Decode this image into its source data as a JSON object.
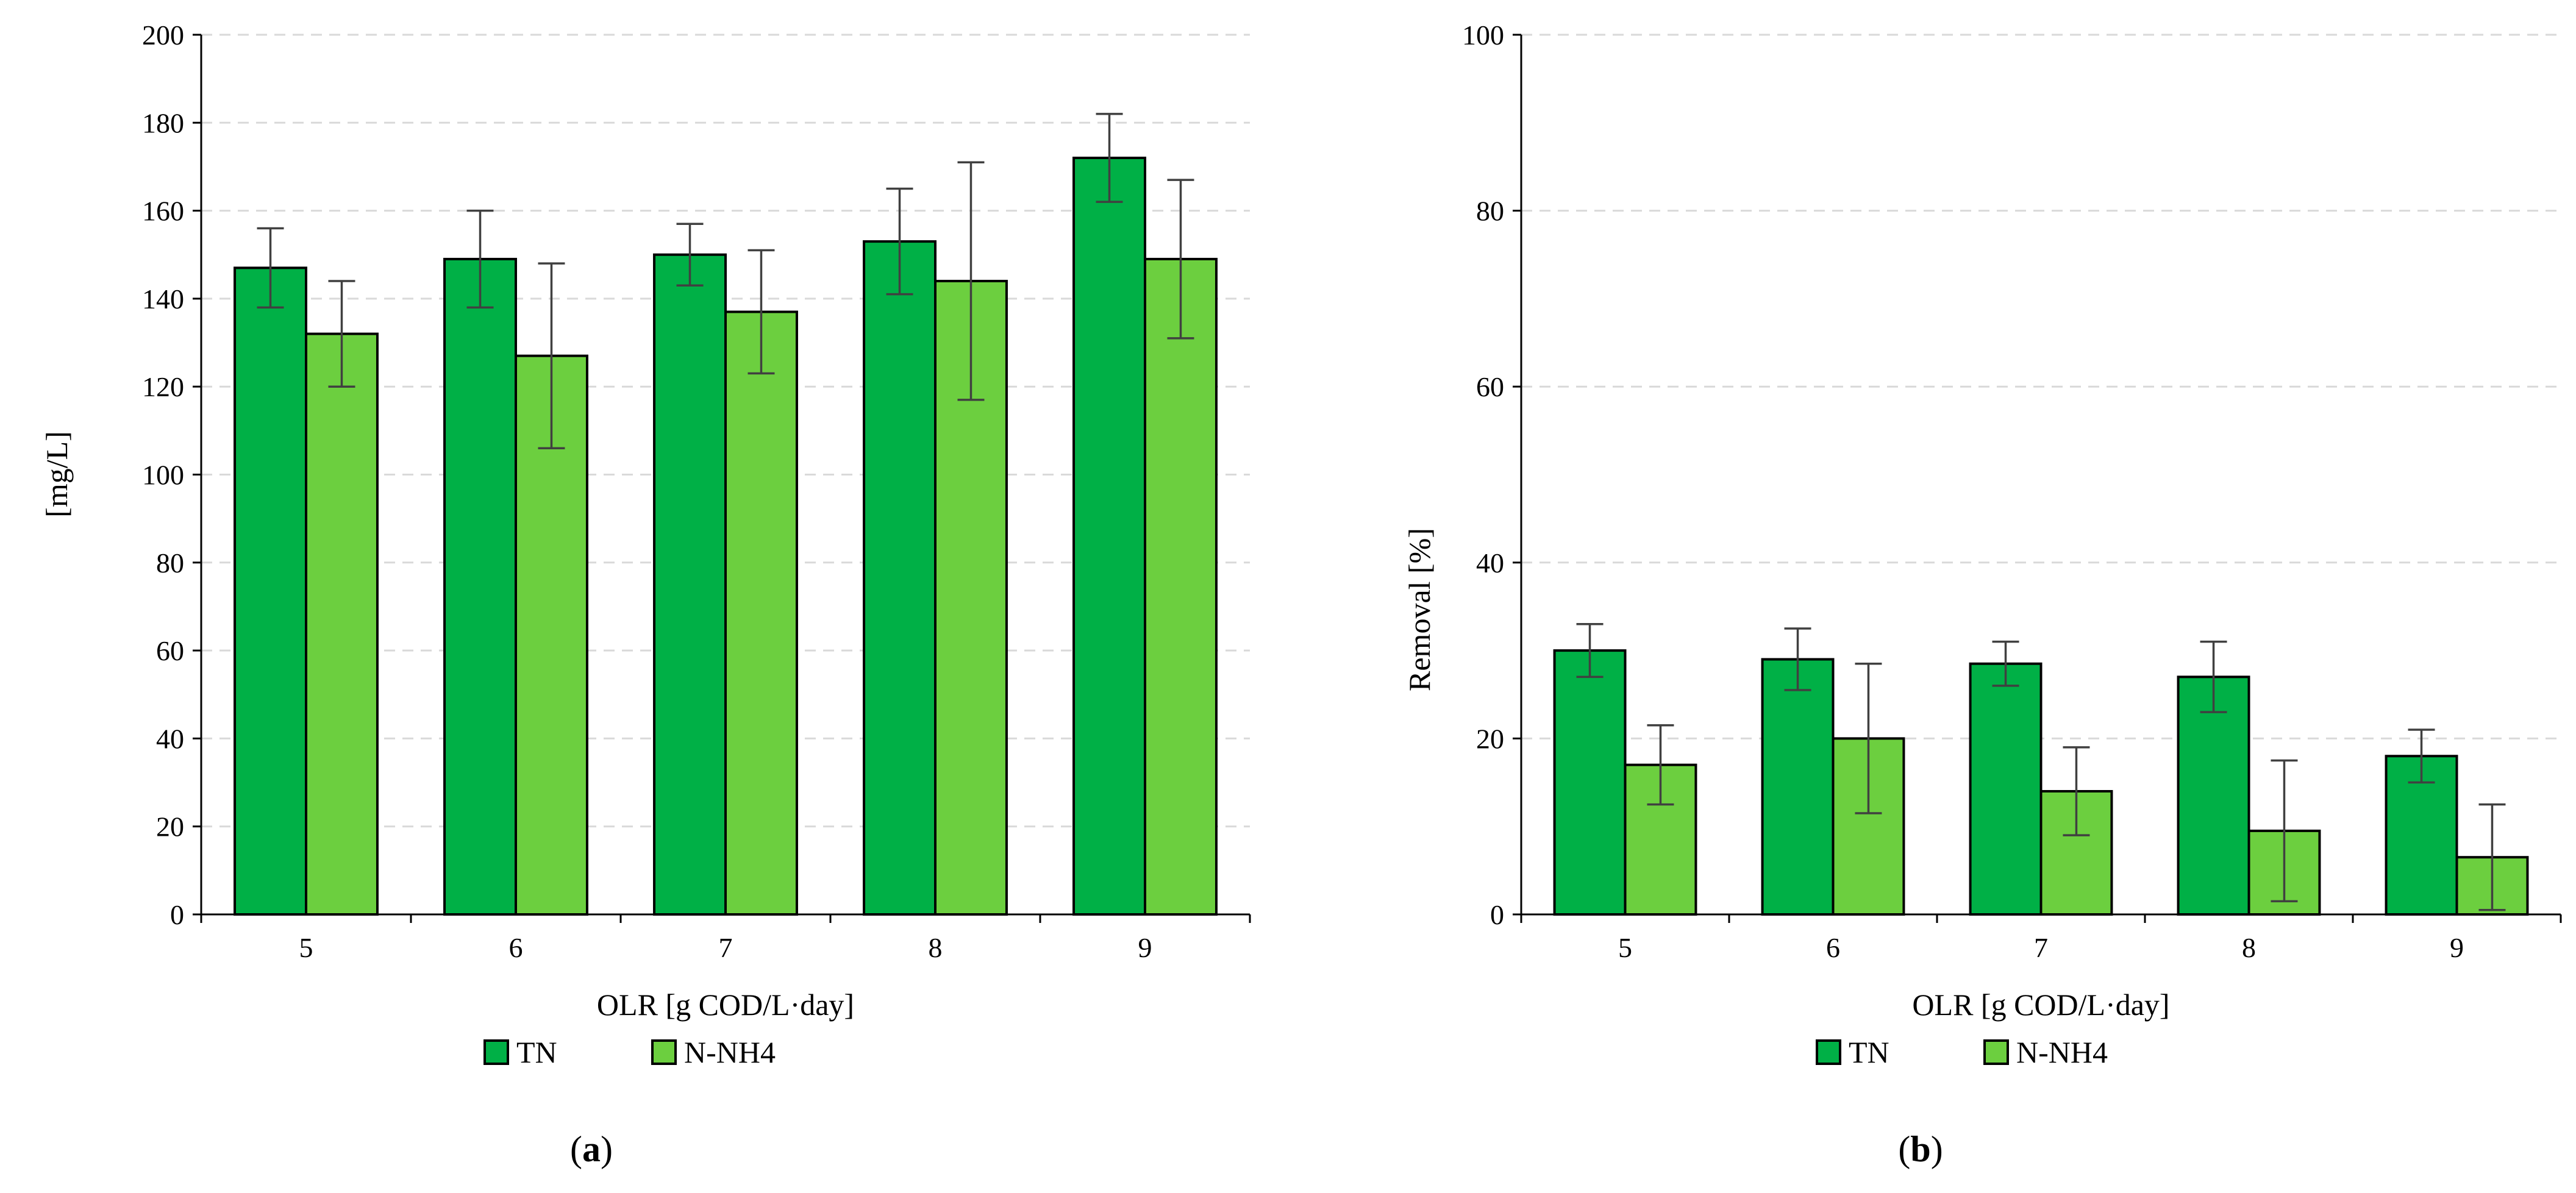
{
  "colors": {
    "TN": "#00b046",
    "N-NH4": "#6ccf3f"
  },
  "chart_data": [
    {
      "type": "bar",
      "panel_label": "a",
      "categories": [
        "5",
        "6",
        "7",
        "8",
        "9"
      ],
      "series": [
        {
          "name": "TN",
          "values": [
            147,
            149,
            150,
            153,
            172
          ],
          "errors": [
            9,
            11,
            7,
            12,
            10
          ]
        },
        {
          "name": "N-NH4",
          "values": [
            132,
            127,
            137,
            144,
            149
          ],
          "errors": [
            12,
            21,
            14,
            27,
            18
          ]
        }
      ],
      "title": "",
      "xlabel": "OLR [g COD/L·day]",
      "ylabel": "[mg/L]",
      "ylim": [
        0,
        200
      ],
      "yticks": [
        "0",
        "20",
        "40",
        "60",
        "80",
        "100",
        "120",
        "140",
        "160",
        "180",
        "200"
      ],
      "grid": true,
      "legend": [
        "TN",
        "N-NH4"
      ],
      "legend_position": "bottom-left"
    },
    {
      "type": "bar",
      "panel_label": "b",
      "categories": [
        "5",
        "6",
        "7",
        "8",
        "9"
      ],
      "series": [
        {
          "name": "TN",
          "values": [
            30,
            29,
            28.5,
            27,
            18
          ],
          "errors": [
            3,
            3.5,
            2.5,
            4,
            3
          ]
        },
        {
          "name": "N-NH4",
          "values": [
            17,
            20,
            14,
            9.5,
            6.5
          ],
          "errors": [
            4.5,
            8.5,
            5,
            8,
            6
          ]
        }
      ],
      "title": "",
      "xlabel": "OLR [g COD/L·day]",
      "ylabel": "Removal [%]",
      "ylim": [
        0,
        100
      ],
      "yticks": [
        "0",
        "20",
        "40",
        "60",
        "80",
        "100"
      ],
      "grid": true,
      "legend": [
        "TN",
        "N-NH4"
      ],
      "legend_position": "bottom-left"
    }
  ]
}
